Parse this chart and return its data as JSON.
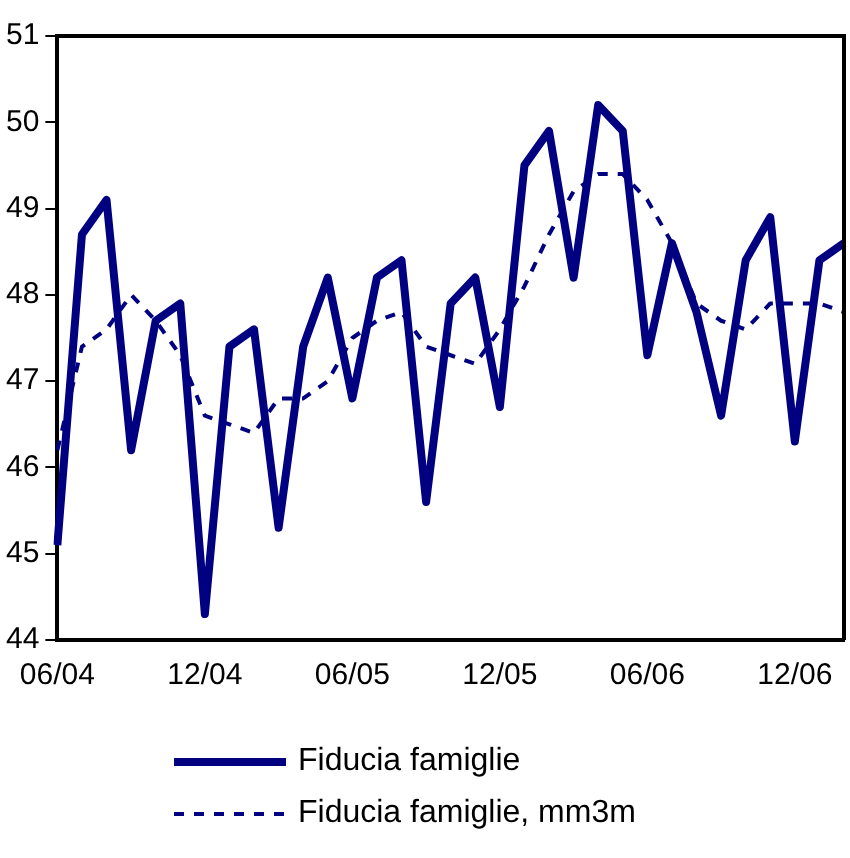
{
  "chart_data": {
    "type": "line",
    "categories": [
      "06/04",
      null,
      null,
      null,
      null,
      null,
      "12/04",
      null,
      null,
      null,
      null,
      null,
      "06/05",
      null,
      null,
      null,
      null,
      null,
      "12/05",
      null,
      null,
      null,
      null,
      null,
      "06/06",
      null,
      null,
      null,
      null,
      null,
      "12/06",
      null,
      null
    ],
    "ylim": [
      44,
      51
    ],
    "yticks": [
      44,
      45,
      46,
      47,
      48,
      49,
      50,
      51
    ],
    "grid": false,
    "legend": "bottom",
    "marker": "none",
    "series": [
      {
        "name": "Fiducia famiglie",
        "color": "#000080",
        "line_style": "solid",
        "values": [
          45.1,
          48.7,
          49.1,
          46.2,
          47.7,
          47.9,
          44.3,
          47.4,
          47.6,
          45.3,
          47.4,
          48.2,
          46.8,
          48.2,
          48.4,
          45.6,
          47.9,
          48.2,
          46.7,
          49.5,
          49.9,
          48.2,
          50.2,
          49.9,
          47.3,
          48.6,
          47.8,
          46.6,
          48.4,
          48.9,
          46.3,
          48.4,
          48.6
        ]
      },
      {
        "name": "Fiducia famiglie, mm3m",
        "color": "#000080",
        "line_style": "dashed",
        "values": [
          46.2,
          47.4,
          47.6,
          48.0,
          47.7,
          47.3,
          46.6,
          46.5,
          46.4,
          46.8,
          46.8,
          47.0,
          47.5,
          47.7,
          47.8,
          47.4,
          47.3,
          47.2,
          47.6,
          48.1,
          48.7,
          49.2,
          49.4,
          49.4,
          49.1,
          48.6,
          47.9,
          47.7,
          47.6,
          47.9,
          47.9,
          47.9,
          47.8
        ]
      }
    ]
  }
}
